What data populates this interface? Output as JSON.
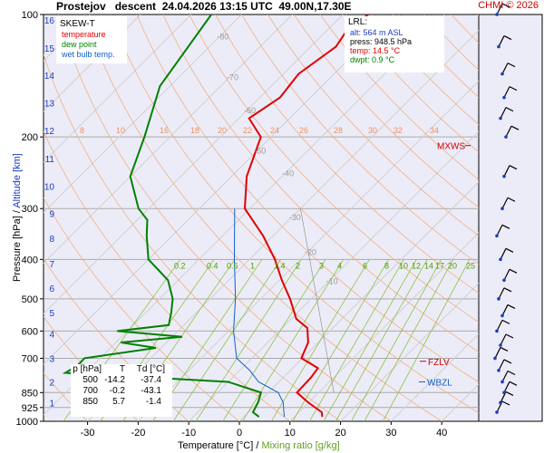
{
  "header": {
    "station": "Prostejov",
    "sounding_type": "descent",
    "datetime": "24.04.2026 13:15 UTC",
    "location": "49.00N,17.30E",
    "copyright": "CHMI © 2026"
  },
  "legend": {
    "title": "SKEW-T",
    "temperature": "temperature",
    "dew_point": "dew point",
    "wet_bulb": "wet bulb temp."
  },
  "lrl": {
    "title": "LRL:",
    "alt": "alt: 564 m ASL",
    "press": "press: 948.5 hPa",
    "temp": "temp: 14.5 °C",
    "dwpt": "dwpt: 0.9 °C"
  },
  "levels_table": {
    "headers": [
      "p [hPa]",
      "T",
      "Td [°C]"
    ],
    "rows": [
      [
        "500",
        "-14.2",
        "-37.4"
      ],
      [
        "700",
        "-0.2",
        "-43.1"
      ],
      [
        "850",
        "5.7",
        "-1.4"
      ]
    ]
  },
  "annotations": {
    "mxws": "MXWS",
    "fzlv": "FZLV",
    "wbzl": "WBZL"
  },
  "axes": {
    "xlabel_temp": "Temperature [°C]",
    "xlabel_sep": "/",
    "xlabel_mix": "Mixing ratio [g/kg]",
    "ylabel_pressure": "Pressure [hPa]",
    "ylabel_sep": "/",
    "ylabel_alt": "Altitude [km]"
  },
  "colors": {
    "temperature": "#e00000",
    "dew_point": "#008000",
    "wet_bulb": "#1060d0",
    "dry_adiabat": "#f0b080",
    "mixing_ratio": "#90c040",
    "isotherm_text": "#999999",
    "background": "#ececf8",
    "altitude_text": "#1a3cc0"
  },
  "chart_data": {
    "type": "skew-t",
    "pressure_ticks": [
      100,
      200,
      300,
      400,
      500,
      600,
      700,
      850,
      925,
      1000
    ],
    "temperature_ticks": [
      -30,
      -20,
      -10,
      0,
      10,
      20,
      30,
      40
    ],
    "altitude_ticks_km": [
      1,
      2,
      3,
      4,
      5,
      6,
      7,
      8,
      9,
      10,
      11,
      12,
      13,
      14,
      15,
      16
    ],
    "isotherm_labels": [
      -80,
      -70,
      -60,
      -50,
      -40,
      -30,
      -20,
      -10
    ],
    "dry_adiabat_labels_top": [
      8,
      10,
      16,
      18,
      20,
      22,
      24,
      26,
      28,
      30,
      32,
      34
    ],
    "mixing_ratio_labels": [
      "0.2",
      "0.4",
      "0.6",
      "1",
      "1.4",
      "2",
      "3",
      "4",
      "6",
      "8",
      "10",
      "12",
      "14",
      "17",
      "20",
      "25"
    ],
    "temperature_profile": [
      {
        "p": 975,
        "t": 15.5
      },
      {
        "p": 950,
        "t": 14.5
      },
      {
        "p": 900,
        "t": 10.0
      },
      {
        "p": 850,
        "t": 5.7
      },
      {
        "p": 780,
        "t": 5.5
      },
      {
        "p": 740,
        "t": 5.0
      },
      {
        "p": 700,
        "t": -0.2
      },
      {
        "p": 640,
        "t": -2.0
      },
      {
        "p": 590,
        "t": -5.0
      },
      {
        "p": 560,
        "t": -9.0
      },
      {
        "p": 500,
        "t": -14.2
      },
      {
        "p": 450,
        "t": -19.5
      },
      {
        "p": 400,
        "t": -25.0
      },
      {
        "p": 350,
        "t": -32.0
      },
      {
        "p": 300,
        "t": -41.0
      },
      {
        "p": 250,
        "t": -47.0
      },
      {
        "p": 200,
        "t": -52.0
      },
      {
        "p": 180,
        "t": -58.0
      },
      {
        "p": 160,
        "t": -56.0
      },
      {
        "p": 140,
        "t": -57.0
      },
      {
        "p": 120,
        "t": -55.0
      },
      {
        "p": 110,
        "t": -56.0
      },
      {
        "p": 100,
        "t": -55.0
      }
    ],
    "dewpoint_profile": [
      {
        "p": 975,
        "t": 3.0
      },
      {
        "p": 950,
        "t": 0.9
      },
      {
        "p": 900,
        "t": 0.0
      },
      {
        "p": 850,
        "t": -1.4
      },
      {
        "p": 800,
        "t": -10.0
      },
      {
        "p": 760,
        "t": -44.0
      },
      {
        "p": 730,
        "t": -43.0
      },
      {
        "p": 700,
        "t": -43.1
      },
      {
        "p": 660,
        "t": -31.0
      },
      {
        "p": 640,
        "t": -39.0
      },
      {
        "p": 620,
        "t": -28.0
      },
      {
        "p": 600,
        "t": -42.0
      },
      {
        "p": 580,
        "t": -33.0
      },
      {
        "p": 540,
        "t": -35.0
      },
      {
        "p": 500,
        "t": -37.4
      },
      {
        "p": 450,
        "t": -42.0
      },
      {
        "p": 400,
        "t": -50.0
      },
      {
        "p": 350,
        "t": -55.0
      },
      {
        "p": 320,
        "t": -58.0
      },
      {
        "p": 300,
        "t": -62.0
      },
      {
        "p": 250,
        "t": -70.0
      },
      {
        "p": 200,
        "t": -75.0
      },
      {
        "p": 150,
        "t": -82.0
      },
      {
        "p": 100,
        "t": -86.0
      }
    ],
    "wetbulb_profile": [
      {
        "p": 975,
        "t": 8.0
      },
      {
        "p": 950,
        "t": 7.0
      },
      {
        "p": 900,
        "t": 5.0
      },
      {
        "p": 850,
        "t": 2.0
      },
      {
        "p": 800,
        "t": -4.0
      },
      {
        "p": 750,
        "t": -8.0
      },
      {
        "p": 700,
        "t": -13.0
      },
      {
        "p": 600,
        "t": -19.0
      },
      {
        "p": 500,
        "t": -25.0
      },
      {
        "p": 400,
        "t": -33.0
      },
      {
        "p": 300,
        "t": -43.0
      }
    ],
    "wind_barbs": [
      {
        "p": 950
      },
      {
        "p": 900
      },
      {
        "p": 850
      },
      {
        "p": 800
      },
      {
        "p": 750
      },
      {
        "p": 700
      },
      {
        "p": 650
      },
      {
        "p": 600
      },
      {
        "p": 550
      },
      {
        "p": 500
      },
      {
        "p": 450
      },
      {
        "p": 400
      },
      {
        "p": 350
      },
      {
        "p": 300
      },
      {
        "p": 250
      },
      {
        "p": 200
      },
      {
        "p": 180
      },
      {
        "p": 160
      },
      {
        "p": 140
      },
      {
        "p": 120
      },
      {
        "p": 100
      }
    ],
    "ylim_hpa": [
      1000,
      100
    ],
    "xlim_c": [
      -35,
      45
    ]
  }
}
